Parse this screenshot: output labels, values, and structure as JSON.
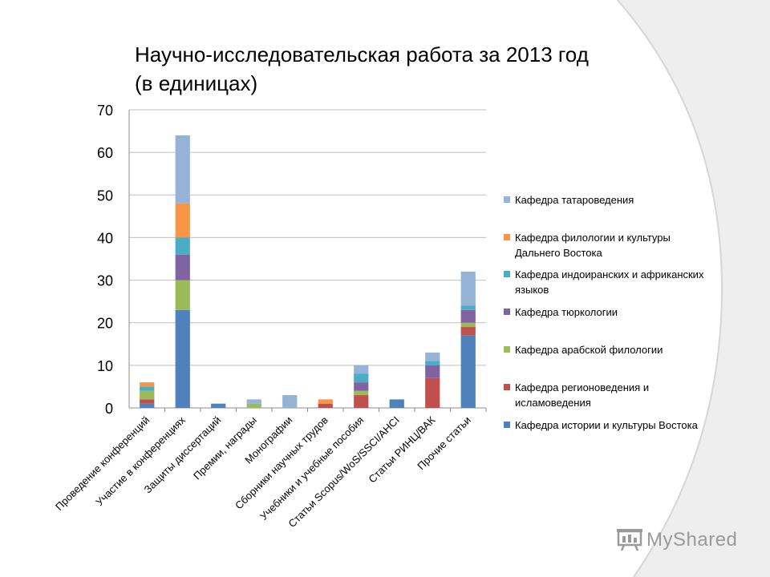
{
  "title_line1": "Научно-исследовательская работа за 2013 год",
  "title_line2": "(в единицах)",
  "watermark": "MyShared",
  "chart_data": {
    "type": "bar",
    "stacked": true,
    "ylim": [
      0,
      70
    ],
    "yticks": [
      0,
      10,
      20,
      30,
      40,
      50,
      60,
      70
    ],
    "grid": true,
    "legend_position": "right",
    "categories": [
      "Проведение конференций",
      "Участие в конференциях",
      "Защиты диссертаций",
      "Премии, награды",
      "Монографии",
      "Сборники научных трудов",
      "Учебники и учебные пособия",
      "Статьи Scopus/WoS/SSCI/AHCI",
      "Статьи РИНЦ/ВАК",
      "Прочие статьи"
    ],
    "series": [
      {
        "name": "Кафедра истории и культуры Востока",
        "color": "#4f81bd",
        "values": [
          1,
          23,
          1,
          0,
          0,
          0,
          0,
          2,
          0,
          17
        ]
      },
      {
        "name": "Кафедра регионоведения и исламоведения",
        "color": "#c0504d",
        "values": [
          1,
          0,
          0,
          0,
          0,
          1,
          3,
          0,
          7,
          2
        ]
      },
      {
        "name": "Кафедра арабской филологии",
        "color": "#9bbb59",
        "values": [
          2,
          7,
          0,
          1,
          0,
          0,
          1,
          0,
          0,
          1
        ]
      },
      {
        "name": "Кафедра тюркологии",
        "color": "#8064a2",
        "values": [
          0,
          6,
          0,
          0,
          0,
          0,
          2,
          0,
          3,
          3
        ]
      },
      {
        "name": "Кафедра индоиранских и африканских языков",
        "color": "#4bacc6",
        "values": [
          1,
          4,
          0,
          0,
          0,
          0,
          2,
          0,
          1,
          1
        ]
      },
      {
        "name": "Кафедра филологии и культуры Дальнего Востока",
        "color": "#f79646",
        "values": [
          1,
          8,
          0,
          0,
          0,
          1,
          0,
          0,
          0,
          0
        ]
      },
      {
        "name": "Кафедра татароведения",
        "color": "#95b3d7",
        "values": [
          0,
          16,
          0,
          1,
          3,
          0,
          2,
          0,
          2,
          8
        ]
      }
    ]
  },
  "legend": [
    {
      "lines": [
        "Кафедра татароведения"
      ],
      "color": "#95b3d7"
    },
    {
      "lines": [
        "Кафедра филологии и культуры",
        "Дальнего Востока"
      ],
      "color": "#f79646"
    },
    {
      "lines": [
        "Кафедра индоиранских и африканских",
        "языков"
      ],
      "color": "#4bacc6"
    },
    {
      "lines": [
        "Кафедра тюркологии"
      ],
      "color": "#8064a2"
    },
    {
      "lines": [
        "Кафедра арабской филологии"
      ],
      "color": "#9bbb59"
    },
    {
      "lines": [
        "Кафедра регионоведения и",
        "исламоведения"
      ],
      "color": "#c0504d"
    },
    {
      "lines": [
        "Кафедра истории и культуры Востока"
      ],
      "color": "#4f81bd"
    }
  ]
}
